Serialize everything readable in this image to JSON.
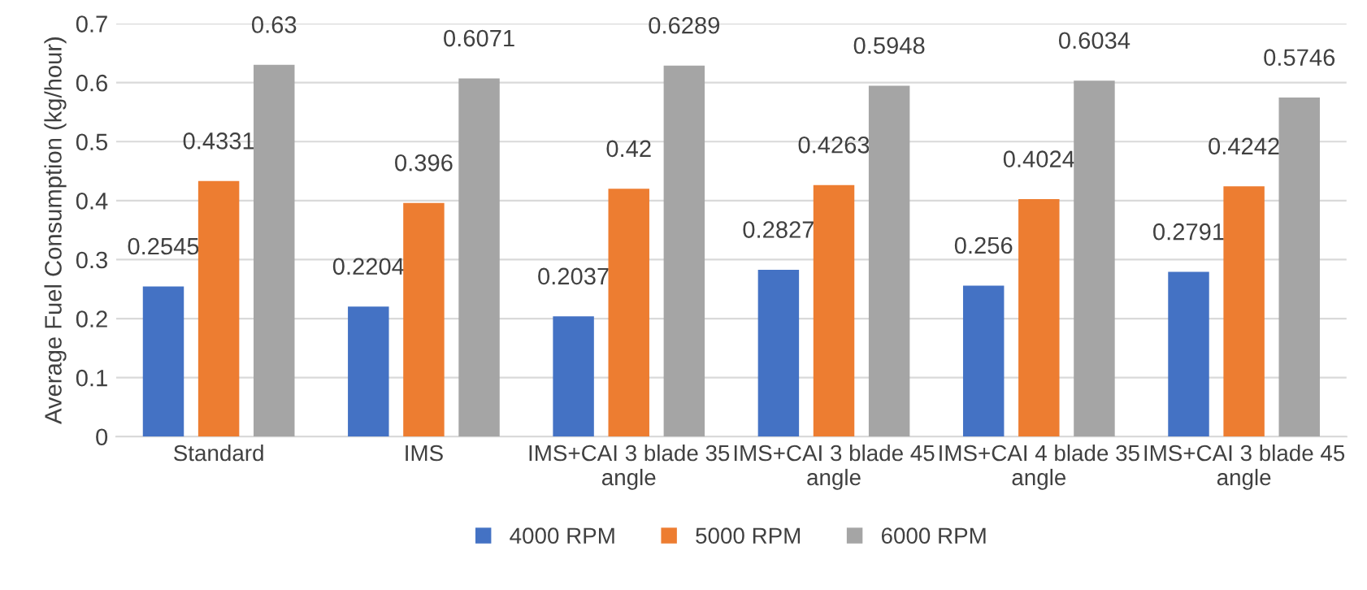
{
  "chart_data": {
    "type": "bar",
    "ylabel": "Average Fuel Consumption (kg/hour)",
    "categories": [
      "Standard",
      "IMS",
      "IMS+CAI 3 blade 35 angle",
      "IMS+CAI 3 blade 45 angle",
      "IMS+CAI 4 blade 35 angle",
      "IMS+CAI 3 blade 45 angle"
    ],
    "series": [
      {
        "name": "4000 RPM",
        "color": "#4472c4",
        "values": [
          0.2545,
          0.2204,
          0.2037,
          0.2827,
          0.256,
          0.2791
        ]
      },
      {
        "name": "5000 RPM",
        "color": "#ed7d31",
        "values": [
          0.4331,
          0.396,
          0.42,
          0.4263,
          0.4024,
          0.4242
        ]
      },
      {
        "name": "6000 RPM",
        "color": "#a5a5a5",
        "values": [
          0.63,
          0.6071,
          0.6289,
          0.5948,
          0.6034,
          0.5746
        ]
      }
    ],
    "ylim": [
      0,
      0.7
    ],
    "yticks": [
      0,
      0.1,
      0.2,
      0.3,
      0.4,
      0.5,
      0.6,
      0.7
    ],
    "grid": "y",
    "legend": "bottom",
    "data_labels": true
  }
}
